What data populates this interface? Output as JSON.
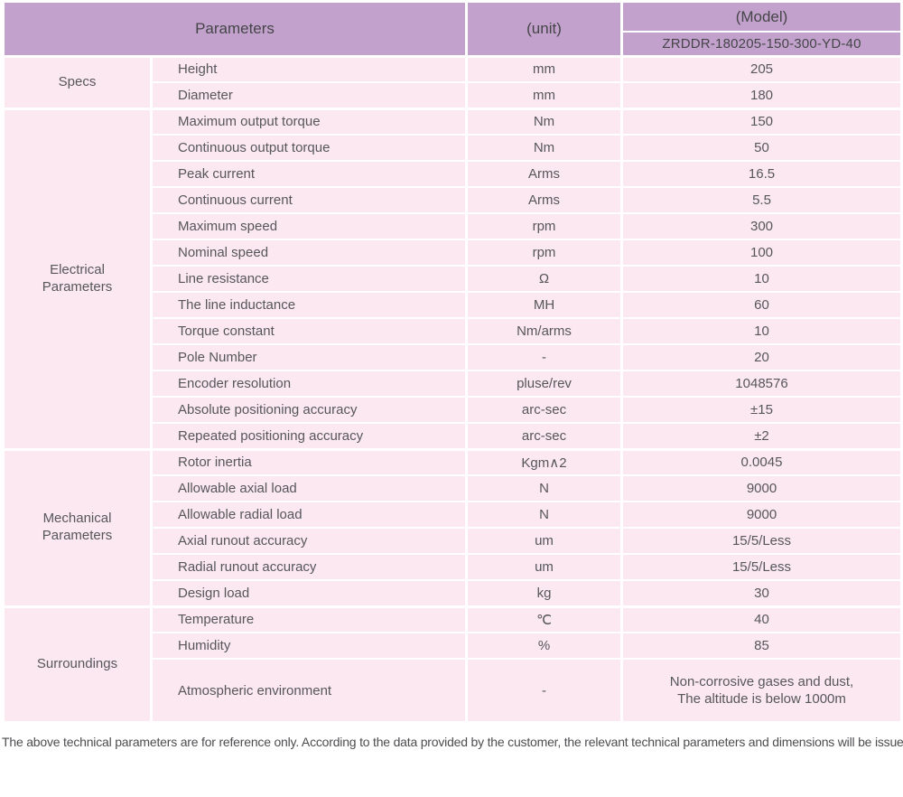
{
  "colors": {
    "header_bg": "#c2a2cd",
    "row_bg": "#fbe8f1",
    "separator": "#ffffff",
    "body_text": "#57575a"
  },
  "table": {
    "header": {
      "parameters_label": "Parameters",
      "unit_label": "(unit)",
      "model_label": "(Model)",
      "model_value": "ZRDDR-180205-150-300-YD-40"
    },
    "sections": [
      {
        "label": "Specs",
        "rows": [
          {
            "parameter": "Height",
            "unit": "mm",
            "value": "205"
          },
          {
            "parameter": "Diameter",
            "unit": "mm",
            "value": "180"
          }
        ]
      },
      {
        "label": "Electrical Parameters",
        "rows": [
          {
            "parameter": "Maximum output torque",
            "unit": "Nm",
            "value": "150"
          },
          {
            "parameter": "Continuous output torque",
            "unit": "Nm",
            "value": "50"
          },
          {
            "parameter": "Peak current",
            "unit": "Arms",
            "value": "16.5"
          },
          {
            "parameter": "Continuous current",
            "unit": "Arms",
            "value": "5.5"
          },
          {
            "parameter": "Maximum speed",
            "unit": "rpm",
            "value": "300"
          },
          {
            "parameter": "Nominal speed",
            "unit": "rpm",
            "value": "100"
          },
          {
            "parameter": "Line resistance",
            "unit": "Ω",
            "value": "10"
          },
          {
            "parameter": "The line inductance",
            "unit": "MH",
            "value": "60"
          },
          {
            "parameter": "Torque constant",
            "unit": "Nm/arms",
            "value": "10"
          },
          {
            "parameter": "Pole Number",
            "unit": "-",
            "value": "20"
          },
          {
            "parameter": "Encoder resolution",
            "unit": "pluse/rev",
            "value": "1048576"
          },
          {
            "parameter": "Absolute positioning accuracy",
            "unit": "arc-sec",
            "value": "±15"
          },
          {
            "parameter": "Repeated positioning accuracy",
            "unit": "arc-sec",
            "value": "±2"
          }
        ]
      },
      {
        "label": "Mechanical Parameters",
        "rows": [
          {
            "parameter": "Rotor inertia",
            "unit": "Kgm∧2",
            "value": "0.0045"
          },
          {
            "parameter": "Allowable axial load",
            "unit": "N",
            "value": "9000"
          },
          {
            "parameter": "Allowable radial load",
            "unit": "N",
            "value": "9000"
          },
          {
            "parameter": "Axial runout accuracy",
            "unit": "um",
            "value": "15/5/Less"
          },
          {
            "parameter": "Radial runout accuracy",
            "unit": "um",
            "value": "15/5/Less"
          },
          {
            "parameter": "Design load",
            "unit": "kg",
            "value": "30"
          }
        ]
      },
      {
        "label": "Surroundings",
        "rows": [
          {
            "parameter": "Temperature",
            "unit": "℃",
            "value": "40"
          },
          {
            "parameter": "Humidity",
            "unit": "%",
            "value": "85"
          },
          {
            "parameter": "Atmospheric environment",
            "unit": "-",
            "value": "Non-corrosive gases and dust,\nThe altitude is below 1000m"
          }
        ]
      }
    ]
  },
  "footer": {
    "note": "The above technical parameters are for reference only. According to the data provided by the customer, the relevant technical parameters and dimensions will be issued."
  }
}
